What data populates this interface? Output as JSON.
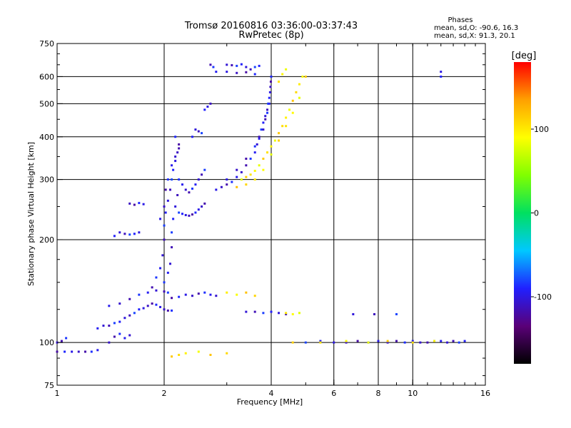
{
  "header": {
    "title_line1": "Tromsø 20160816 03:36:00-03:37:43",
    "title_line2": "RwPretec (8p)",
    "phases_title": "Phases",
    "phases_o": "mean, sd,O: -90.6, 16.3",
    "phases_x": "mean, sd,X:  91.3, 20.1"
  },
  "colorbar": {
    "label": "[deg]",
    "ticks": [
      {
        "value": 100,
        "label": "100"
      },
      {
        "value": 0,
        "label": "0"
      },
      {
        "value": -100,
        "label": "-100"
      }
    ],
    "range": [
      -180,
      180
    ],
    "colors": [
      "#000000",
      "#5a0078",
      "#2020ff",
      "#00c8ff",
      "#00e060",
      "#80ff00",
      "#ffff00",
      "#ffa000",
      "#ff0000"
    ]
  },
  "chart_data": {
    "type": "scatter",
    "title": "Tromsø 20160816 03:36:00-03:37:43",
    "subtitle": "RwPretec (8p)",
    "xlabel": "Frequency [MHz]",
    "ylabel": "Stationary phase Virtual Height [km]",
    "x_scale": "log",
    "y_scale": "log",
    "xlim": [
      1,
      16
    ],
    "ylim": [
      75,
      750
    ],
    "x_ticks": [
      {
        "value": 1,
        "label": "1"
      },
      {
        "value": 2,
        "label": "2"
      },
      {
        "value": 4,
        "label": "4"
      },
      {
        "value": 6,
        "label": "6"
      },
      {
        "value": 8,
        "label": "8"
      },
      {
        "value": 10,
        "label": "10"
      },
      {
        "value": 16,
        "label": "16"
      }
    ],
    "y_ticks": [
      {
        "value": 75,
        "label": "75"
      },
      {
        "value": 100,
        "label": "100"
      },
      {
        "value": 200,
        "label": "200"
      },
      {
        "value": 300,
        "label": "300"
      },
      {
        "value": 400,
        "label": "400"
      },
      {
        "value": 500,
        "label": "500"
      },
      {
        "value": 600,
        "label": "600"
      },
      {
        "value": 750,
        "label": "750"
      }
    ],
    "grid_x": [
      2,
      4,
      6,
      8,
      10
    ],
    "grid_y": [
      100,
      200,
      300,
      400,
      500,
      600
    ],
    "color_axis": "phase [deg]",
    "series": [
      {
        "name": "O",
        "phase": -100,
        "points": [
          [
            1.0,
            94
          ],
          [
            1.05,
            94
          ],
          [
            1.1,
            94
          ],
          [
            1.15,
            94
          ],
          [
            1.2,
            94
          ],
          [
            1.25,
            94
          ],
          [
            1.3,
            95
          ],
          [
            1.0,
            100
          ],
          [
            1.03,
            101
          ],
          [
            1.06,
            103
          ],
          [
            1.3,
            110
          ],
          [
            1.35,
            112
          ],
          [
            1.4,
            112
          ],
          [
            1.45,
            114
          ],
          [
            1.5,
            115
          ],
          [
            1.55,
            118
          ],
          [
            1.6,
            120
          ],
          [
            1.65,
            122
          ],
          [
            1.7,
            125
          ],
          [
            1.75,
            126
          ],
          [
            1.8,
            128
          ],
          [
            1.85,
            130
          ],
          [
            1.9,
            129
          ],
          [
            1.95,
            127
          ],
          [
            2.0,
            125
          ],
          [
            2.05,
            124
          ],
          [
            2.1,
            124
          ],
          [
            1.4,
            128
          ],
          [
            1.5,
            130
          ],
          [
            1.6,
            134
          ],
          [
            1.7,
            138
          ],
          [
            1.8,
            140
          ],
          [
            1.9,
            142
          ],
          [
            2.0,
            141
          ],
          [
            2.05,
            140
          ],
          [
            1.45,
            205
          ],
          [
            1.5,
            210
          ],
          [
            1.55,
            208
          ],
          [
            1.6,
            207
          ],
          [
            1.65,
            208
          ],
          [
            1.7,
            210
          ],
          [
            1.6,
            255
          ],
          [
            1.65,
            253
          ],
          [
            1.7,
            256
          ],
          [
            1.75,
            254
          ],
          [
            1.4,
            100
          ],
          [
            1.45,
            104
          ],
          [
            1.5,
            106
          ],
          [
            1.55,
            103
          ],
          [
            1.6,
            105
          ],
          [
            1.85,
            145
          ],
          [
            1.9,
            155
          ],
          [
            1.95,
            165
          ],
          [
            1.98,
            180
          ],
          [
            2.0,
            200
          ],
          [
            2.0,
            220
          ],
          [
            2.02,
            240
          ],
          [
            2.05,
            260
          ],
          [
            2.08,
            280
          ],
          [
            2.1,
            300
          ],
          [
            2.12,
            320
          ],
          [
            2.15,
            340
          ],
          [
            2.18,
            360
          ],
          [
            2.2,
            380
          ],
          [
            2.15,
            400
          ],
          [
            1.95,
            230
          ],
          [
            2.0,
            250
          ],
          [
            2.02,
            280
          ],
          [
            2.05,
            300
          ],
          [
            2.1,
            330
          ],
          [
            2.15,
            350
          ],
          [
            2.2,
            370
          ],
          [
            2.0,
            150
          ],
          [
            2.05,
            160
          ],
          [
            2.08,
            170
          ],
          [
            2.1,
            190
          ],
          [
            2.1,
            210
          ],
          [
            2.12,
            230
          ],
          [
            2.15,
            250
          ],
          [
            2.18,
            270
          ],
          [
            2.2,
            240
          ],
          [
            2.25,
            238
          ],
          [
            2.3,
            236
          ],
          [
            2.35,
            235
          ],
          [
            2.4,
            237
          ],
          [
            2.45,
            240
          ],
          [
            2.5,
            245
          ],
          [
            2.55,
            250
          ],
          [
            2.6,
            255
          ],
          [
            2.2,
            300
          ],
          [
            2.25,
            290
          ],
          [
            2.3,
            280
          ],
          [
            2.35,
            275
          ],
          [
            2.4,
            282
          ],
          [
            2.45,
            290
          ],
          [
            2.5,
            300
          ],
          [
            2.55,
            310
          ],
          [
            2.6,
            320
          ],
          [
            2.4,
            400
          ],
          [
            2.45,
            420
          ],
          [
            2.5,
            415
          ],
          [
            2.55,
            410
          ],
          [
            2.6,
            480
          ],
          [
            2.65,
            490
          ],
          [
            2.7,
            500
          ],
          [
            2.1,
            135
          ],
          [
            2.2,
            136
          ],
          [
            2.3,
            138
          ],
          [
            2.4,
            137
          ],
          [
            2.5,
            139
          ],
          [
            2.6,
            140
          ],
          [
            2.7,
            138
          ],
          [
            2.8,
            137
          ],
          [
            2.7,
            650
          ],
          [
            2.75,
            640
          ],
          [
            2.8,
            620
          ],
          [
            3.0,
            650
          ],
          [
            3.1,
            648
          ],
          [
            3.2,
            645
          ],
          [
            3.3,
            652
          ],
          [
            3.4,
            640
          ],
          [
            3.5,
            630
          ],
          [
            3.6,
            640
          ],
          [
            3.7,
            645
          ],
          [
            3.0,
            620
          ],
          [
            3.2,
            615
          ],
          [
            3.4,
            618
          ],
          [
            3.6,
            610
          ],
          [
            2.8,
            280
          ],
          [
            2.9,
            285
          ],
          [
            3.0,
            290
          ],
          [
            3.1,
            295
          ],
          [
            3.2,
            305
          ],
          [
            3.3,
            315
          ],
          [
            3.4,
            330
          ],
          [
            3.5,
            345
          ],
          [
            3.6,
            360
          ],
          [
            3.65,
            380
          ],
          [
            3.7,
            400
          ],
          [
            3.75,
            420
          ],
          [
            3.8,
            440
          ],
          [
            3.85,
            460
          ],
          [
            3.9,
            480
          ],
          [
            3.92,
            500
          ],
          [
            3.95,
            520
          ],
          [
            3.97,
            540
          ],
          [
            3.98,
            560
          ],
          [
            3.99,
            580
          ],
          [
            4.0,
            600
          ],
          [
            3.0,
            300
          ],
          [
            3.2,
            320
          ],
          [
            3.4,
            345
          ],
          [
            3.6,
            375
          ],
          [
            3.7,
            395
          ],
          [
            3.8,
            420
          ],
          [
            3.85,
            450
          ],
          [
            3.9,
            470
          ],
          [
            3.95,
            500
          ],
          [
            3.4,
            123
          ],
          [
            3.6,
            123
          ],
          [
            3.8,
            122
          ],
          [
            4.0,
            123
          ],
          [
            4.2,
            122
          ],
          [
            4.4,
            121
          ],
          [
            5.0,
            100
          ],
          [
            5.5,
            101
          ],
          [
            6.0,
            100
          ],
          [
            6.5,
            100
          ],
          [
            7.0,
            101
          ],
          [
            7.5,
            100
          ],
          [
            8.0,
            101
          ],
          [
            8.5,
            100
          ],
          [
            9.0,
            101
          ],
          [
            9.5,
            100
          ],
          [
            10.0,
            101
          ],
          [
            10.5,
            100
          ],
          [
            11.0,
            100
          ],
          [
            11.5,
            101
          ],
          [
            12.0,
            101
          ],
          [
            12.5,
            100
          ],
          [
            13.0,
            101
          ],
          [
            13.5,
            100
          ],
          [
            14.0,
            101
          ],
          [
            6.8,
            121
          ],
          [
            7.8,
            121
          ],
          [
            9.0,
            121
          ],
          [
            12.0,
            600
          ],
          [
            12.0,
            620
          ]
        ]
      },
      {
        "name": "X",
        "phase": 100,
        "points": [
          [
            3.3,
            300
          ],
          [
            3.4,
            305
          ],
          [
            3.5,
            310
          ],
          [
            3.6,
            318
          ],
          [
            3.7,
            330
          ],
          [
            3.8,
            345
          ],
          [
            3.9,
            360
          ],
          [
            4.0,
            375
          ],
          [
            4.1,
            390
          ],
          [
            4.2,
            410
          ],
          [
            4.3,
            430
          ],
          [
            4.4,
            455
          ],
          [
            4.5,
            480
          ],
          [
            4.6,
            510
          ],
          [
            4.7,
            540
          ],
          [
            4.8,
            570
          ],
          [
            4.9,
            600
          ],
          [
            3.2,
            285
          ],
          [
            3.4,
            290
          ],
          [
            3.6,
            300
          ],
          [
            3.8,
            320
          ],
          [
            4.0,
            355
          ],
          [
            4.2,
            390
          ],
          [
            4.4,
            430
          ],
          [
            4.6,
            470
          ],
          [
            4.8,
            520
          ],
          [
            5.0,
            600
          ],
          [
            4.2,
            580
          ],
          [
            4.3,
            610
          ],
          [
            4.4,
            630
          ],
          [
            2.1,
            91
          ],
          [
            2.2,
            92
          ],
          [
            2.3,
            93
          ],
          [
            2.5,
            94
          ],
          [
            2.7,
            92
          ],
          [
            3.0,
            93
          ],
          [
            3.0,
            140
          ],
          [
            3.2,
            138
          ],
          [
            3.4,
            140
          ],
          [
            3.6,
            137
          ],
          [
            4.4,
            122
          ],
          [
            4.6,
            121
          ],
          [
            4.8,
            122
          ],
          [
            4.6,
            100
          ],
          [
            5.5,
            100
          ],
          [
            6.5,
            101
          ],
          [
            7.5,
            100
          ],
          [
            8.5,
            101
          ],
          [
            10.0,
            100
          ],
          [
            11.5,
            101
          ]
        ]
      }
    ]
  }
}
